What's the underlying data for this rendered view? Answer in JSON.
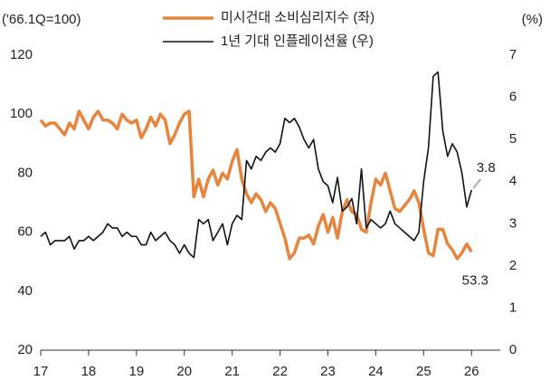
{
  "chart_data": {
    "type": "line",
    "y_label": "('66.1Q=100)",
    "y2_label": "(%)",
    "x": [
      17.0,
      17.1,
      17.2,
      17.3,
      17.4,
      17.5,
      17.6,
      17.7,
      17.8,
      17.9,
      18.0,
      18.1,
      18.2,
      18.3,
      18.4,
      18.5,
      18.6,
      18.7,
      18.8,
      18.9,
      19.0,
      19.1,
      19.2,
      19.3,
      19.4,
      19.5,
      19.6,
      19.7,
      19.8,
      19.9,
      20.0,
      20.1,
      20.2,
      20.3,
      20.4,
      20.5,
      20.6,
      20.7,
      20.8,
      20.9,
      21.0,
      21.1,
      21.2,
      21.3,
      21.4,
      21.5,
      21.6,
      21.7,
      21.8,
      21.9,
      22.0,
      22.1,
      22.2,
      22.3,
      22.4,
      22.5,
      22.6,
      22.7,
      22.8,
      22.9,
      23.0,
      23.1,
      23.2,
      23.3,
      23.4,
      23.5,
      23.6,
      23.7,
      23.8,
      23.9,
      24.0,
      24.1,
      24.2,
      24.3,
      24.4,
      24.5,
      24.6,
      24.7,
      24.8,
      24.9,
      25.0,
      25.1,
      25.2,
      25.3,
      25.4,
      25.5,
      25.6,
      25.7,
      25.8,
      25.9,
      26.0
    ],
    "series": [
      {
        "name": "미시건대 소비심리지수 (좌)",
        "color": "#e8853d",
        "width": 3.5,
        "values": [
          98,
          96,
          97,
          97,
          95,
          93,
          97,
          95,
          101,
          98,
          95,
          99,
          101,
          98,
          98,
          97,
          95,
          100,
          98,
          97,
          98,
          92,
          95,
          99,
          96,
          100,
          98,
          90,
          93,
          97,
          100,
          101,
          72,
          78,
          72,
          78,
          81,
          76,
          80,
          78,
          84,
          88,
          78,
          73,
          70,
          73,
          71,
          67,
          70,
          68,
          63,
          58,
          51,
          53,
          58,
          58,
          59,
          56,
          62,
          66,
          60,
          65,
          58,
          67,
          71,
          67,
          66,
          61,
          60,
          70,
          78,
          76,
          80,
          74,
          68,
          67,
          69,
          71,
          74,
          70,
          61,
          53,
          52,
          61,
          61,
          56,
          54,
          51,
          53,
          56,
          53.3
        ]
      },
      {
        "name": "1년 기대 인플레이션율 (우)",
        "color": "#111111",
        "width": 1.6,
        "axis": "y2",
        "values": [
          2.7,
          2.8,
          2.5,
          2.6,
          2.6,
          2.6,
          2.7,
          2.4,
          2.6,
          2.6,
          2.7,
          2.6,
          2.7,
          2.8,
          3.0,
          2.9,
          2.9,
          2.7,
          2.8,
          2.7,
          2.7,
          2.5,
          2.5,
          2.8,
          2.6,
          2.7,
          2.8,
          2.6,
          2.5,
          2.3,
          2.5,
          2.3,
          2.2,
          3.1,
          3.0,
          3.1,
          2.6,
          2.8,
          3.0,
          2.5,
          3.0,
          3.2,
          3.1,
          4.5,
          4.3,
          4.6,
          4.5,
          4.7,
          4.8,
          4.7,
          4.9,
          5.5,
          5.4,
          5.5,
          5.3,
          5.0,
          4.8,
          5.0,
          4.3,
          4.0,
          3.9,
          3.5,
          4.1,
          3.3,
          3.4,
          3.6,
          3.0,
          4.3,
          2.9,
          3.1,
          3.0,
          2.9,
          3.0,
          3.3,
          3.0,
          2.9,
          2.8,
          2.7,
          2.6,
          2.8,
          4.0,
          4.8,
          6.5,
          6.6,
          5.2,
          4.6,
          4.9,
          4.7,
          4.2,
          3.4,
          3.8
        ]
      }
    ],
    "xlim": [
      17,
      26.6
    ],
    "xticks": [
      17,
      18,
      19,
      20,
      21,
      22,
      23,
      24,
      25,
      26
    ],
    "ylim": [
      20,
      120
    ],
    "yticks": [
      20,
      40,
      60,
      80,
      100,
      120
    ],
    "y2lim": [
      0,
      7
    ],
    "y2ticks": [
      0,
      1,
      2,
      3,
      4,
      5,
      6,
      7
    ],
    "grid": false,
    "legend": "top"
  }
}
